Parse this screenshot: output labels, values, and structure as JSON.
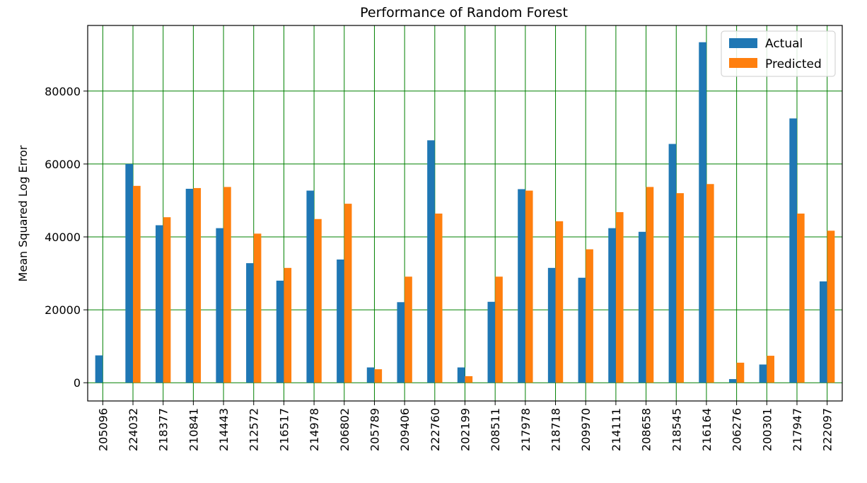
{
  "chart_data": {
    "type": "bar",
    "title": "Performance of Random Forest",
    "xlabel": "",
    "ylabel": "Mean Squared Log Error",
    "categories": [
      "205096",
      "224032",
      "218377",
      "210841",
      "214443",
      "212572",
      "216517",
      "214978",
      "206802",
      "205789",
      "209406",
      "222760",
      "202199",
      "208511",
      "217978",
      "218718",
      "209970",
      "214111",
      "208658",
      "218545",
      "216164",
      "206276",
      "200301",
      "217947",
      "222097"
    ],
    "series": [
      {
        "name": "Actual",
        "color": "#1f77b4",
        "values": [
          7500,
          60000,
          43200,
          53200,
          42400,
          32800,
          28000,
          52700,
          33800,
          4200,
          22100,
          66500,
          4200,
          22200,
          53100,
          31500,
          28800,
          42400,
          41400,
          65500,
          93400,
          1000,
          5000,
          72500,
          27800
        ]
      },
      {
        "name": "Predicted",
        "color": "#ff7f0e",
        "values": [
          0,
          54000,
          45400,
          53400,
          53700,
          40900,
          31500,
          44900,
          49100,
          3700,
          29100,
          46400,
          1800,
          29100,
          52700,
          44300,
          36600,
          46800,
          53700,
          52000,
          54500,
          5500,
          7400,
          46400,
          41700
        ]
      }
    ],
    "ylim": [
      -5000,
      98000
    ],
    "yticks": [
      0,
      20000,
      40000,
      60000,
      80000
    ],
    "ytick_labels": [
      "0",
      "20000",
      "40000",
      "60000",
      "80000"
    ],
    "grid": true,
    "grid_color": "#008000",
    "legend_position": "top-right"
  }
}
